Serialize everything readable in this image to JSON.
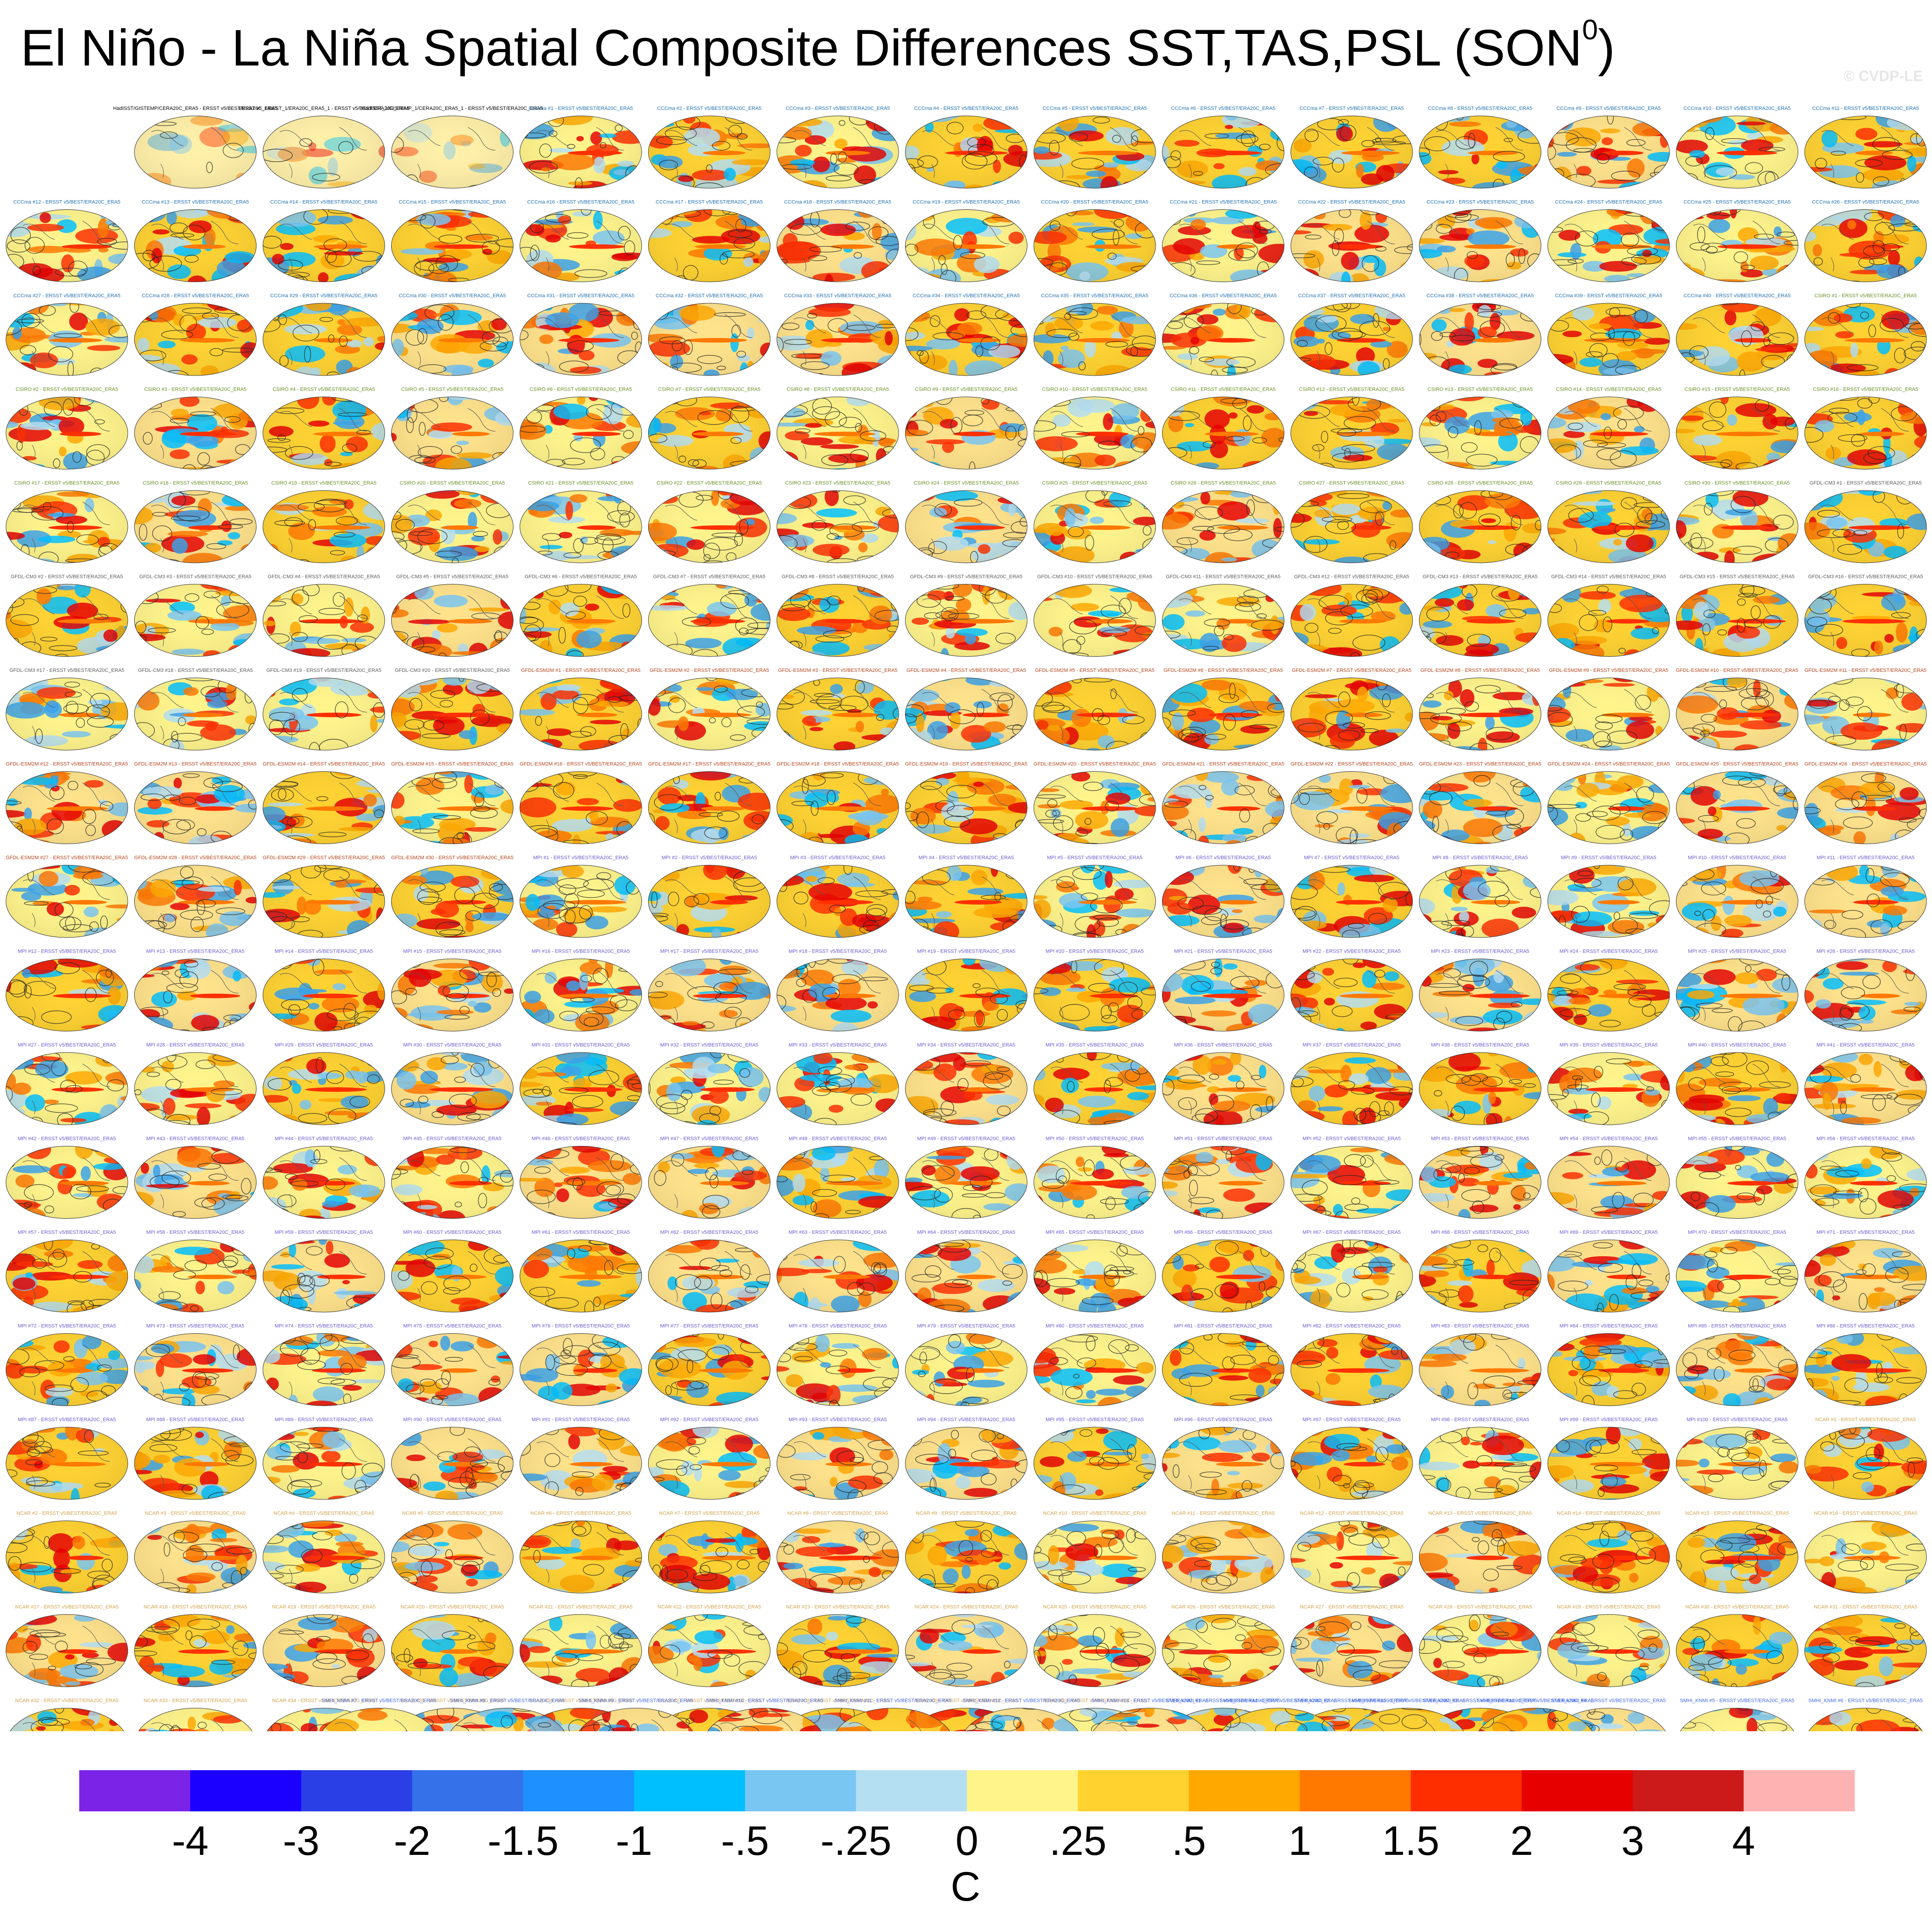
{
  "title": "El Niño - La Niña Spatial Composite Differences SST,TAS,PSL (SON",
  "title_sup": "0",
  "title_close": ")",
  "watermark": "© CVDP-LE",
  "chart_data": {
    "type": "heatmap",
    "description_units": "C",
    "panel_grid": {
      "columns": 15,
      "rows": 18
    },
    "observation_panels": [
      "HadISST/GISTEMP/CERA20C_ERA5 - ERSST v5/BEST/ERA20C_ERA5",
      "ERSST v5_1/BEST_1/ERA20C_ERA5_1 - ERSST v5/BEST/ERA20C_ERA5",
      "HadISST_1/GISTEMP_1/CERA20C_ERA5_1 - ERSST v5/BEST/ERA20C_ERA5"
    ],
    "models": [
      {
        "name": "CCCma",
        "members": 40,
        "label_color": "#1f6fae"
      },
      {
        "name": "CSIRO",
        "members": 30,
        "label_color": "#6b8e23"
      },
      {
        "name": "GFDL-CM3",
        "members": 20,
        "label_color": "#5a5a5a"
      },
      {
        "name": "GFDL-ESM2M",
        "members": 30,
        "label_color": "#b5421b"
      },
      {
        "name": "MPI",
        "members": 100,
        "label_color": "#6a5acd"
      },
      {
        "name": "NCAR",
        "members": 40,
        "label_color": "#d2a24c"
      },
      {
        "name": "SMHI_KNMI",
        "members": 16,
        "label_color": "#4169e1"
      }
    ],
    "panel_label_suffix": "- ERSST v5/BEST/ERA20C_ERA5",
    "colorbar": {
      "colors": [
        "#7b24e8",
        "#1b00ff",
        "#2a3fe6",
        "#3571e8",
        "#1e90ff",
        "#00bfff",
        "#79c6f2",
        "#b4def2",
        "#fff48a",
        "#ffd230",
        "#ffa800",
        "#ff7800",
        "#ff2e00",
        "#e60000",
        "#cc1a1a",
        "#ffb2b2"
      ],
      "tick_labels": [
        "-4",
        "-3",
        "-2",
        "-1.5",
        "-1",
        "-.5",
        "-.25",
        "0",
        ".25",
        ".5",
        "1",
        "1.5",
        "2",
        "3",
        "4"
      ],
      "label": "C"
    }
  }
}
